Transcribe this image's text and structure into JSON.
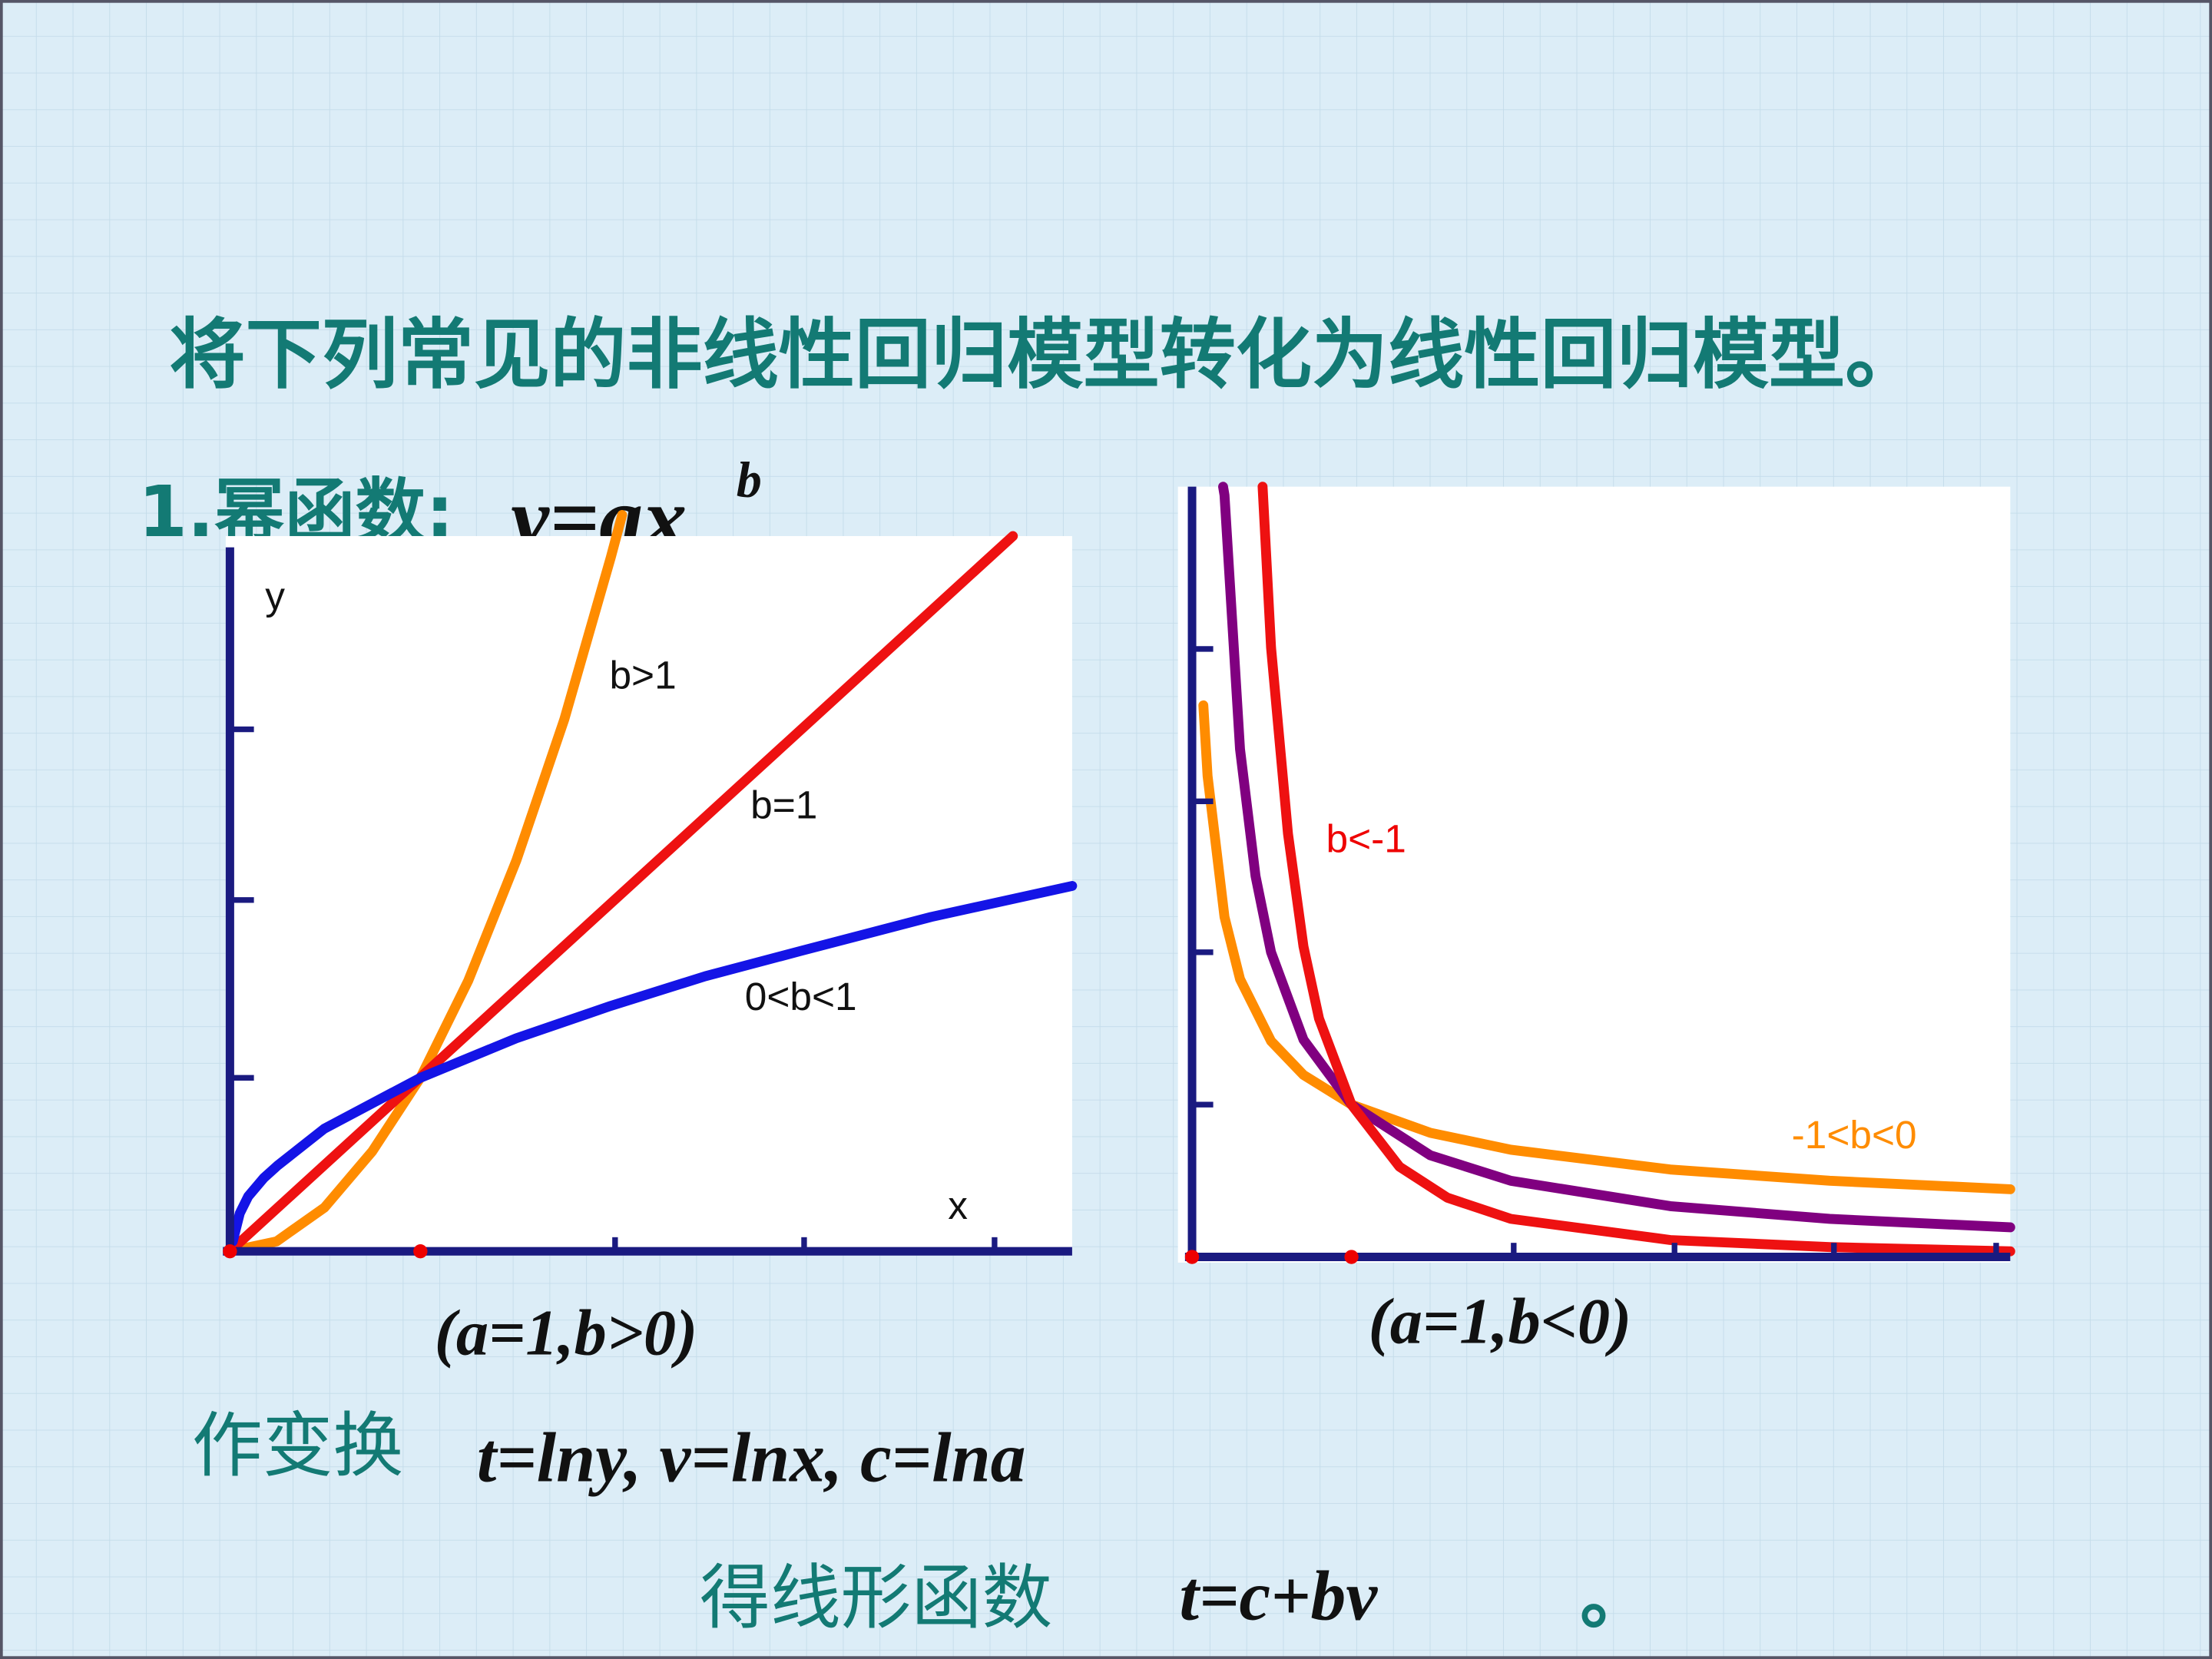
{
  "title": "将下列常见的非线性回归模型转化为线性回归模型。",
  "section": {
    "label": "1.幂函数:",
    "formula_base": "y=ax",
    "formula_exponent": "b"
  },
  "left_graph": {
    "y_label": "y",
    "x_label": "x",
    "curve_labels": [
      "b>1",
      "b=1",
      "0<b<1"
    ],
    "caption": "(a=1,b>0)"
  },
  "right_graph": {
    "curve_labels": [
      "b<-1",
      "-1<b<0"
    ],
    "caption": "(a=1,b<0)"
  },
  "transform": {
    "label": "作变换",
    "formula": "t=lny, v=lnx, c=lna"
  },
  "result": {
    "label": "得线形函数",
    "formula": "t=c+bv",
    "end": "。"
  }
}
